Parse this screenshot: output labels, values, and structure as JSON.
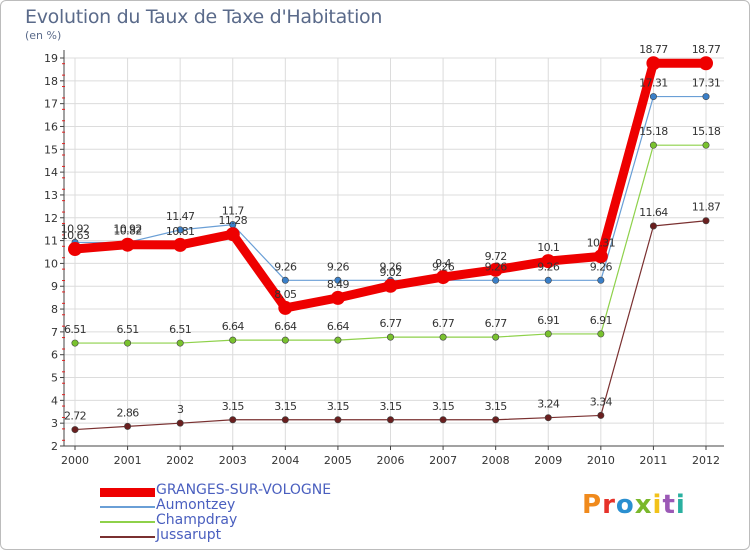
{
  "title": "Evolution du Taux de Taxe d'Habitation",
  "unit": "(en %)",
  "logo": {
    "text": "Proxiti",
    "colors": [
      "#f08a1c",
      "#e6322a",
      "#2a8fd0",
      "#7ab82c",
      "#f2c21a",
      "#9b59b6",
      "#2ab0a0"
    ]
  },
  "chart_data": {
    "type": "line",
    "title": "Evolution du Taux de Taxe d'Habitation",
    "ylabel": "(en %)",
    "ylim": [
      2,
      19
    ],
    "yticks": [
      "2",
      "3",
      "4",
      "5",
      "6",
      "7",
      "8",
      "9",
      "10",
      "11",
      "12",
      "13",
      "14",
      "15",
      "16",
      "17",
      "18",
      "19"
    ],
    "categories": [
      "2000",
      "2001",
      "2002",
      "2003",
      "2004",
      "2005",
      "2006",
      "2007",
      "2008",
      "2009",
      "2010",
      "2011",
      "2012"
    ],
    "series": [
      {
        "name": "GRANGES-SUR-VOLOGNE",
        "color": "#ee0000",
        "width": 9,
        "values": [
          10.63,
          10.82,
          10.81,
          11.28,
          8.05,
          8.49,
          9.02,
          9.4,
          9.72,
          10.1,
          10.31,
          18.77,
          18.77
        ],
        "labels": [
          "10.63",
          "10.82",
          "10.81",
          "11.28",
          "8.05",
          "8.49",
          "9.02",
          "9.4",
          "9.72",
          "10.1",
          "10.31",
          "18.77",
          "18.77"
        ]
      },
      {
        "name": "Aumontzey",
        "color": "#6a9fd6",
        "width": 1.2,
        "values": [
          10.92,
          10.92,
          11.47,
          11.7,
          9.26,
          9.26,
          9.26,
          9.26,
          9.26,
          9.26,
          9.26,
          17.31,
          17.31
        ],
        "labels": [
          "10.92",
          "10.92",
          "11.47",
          "11.7",
          "9.26",
          "9.26",
          "9.26",
          "9.26",
          "9.26",
          "9.26",
          "9.26",
          "17.31",
          "17.31"
        ]
      },
      {
        "name": "Champdray",
        "color": "#8ed14a",
        "width": 1.2,
        "values": [
          6.51,
          6.51,
          6.51,
          6.64,
          6.64,
          6.64,
          6.77,
          6.77,
          6.77,
          6.91,
          6.91,
          15.18,
          15.18
        ],
        "labels": [
          "6.51",
          "6.51",
          "6.51",
          "6.64",
          "6.64",
          "6.64",
          "6.77",
          "6.77",
          "6.77",
          "6.91",
          "6.91",
          "15.18",
          "15.18"
        ]
      },
      {
        "name": "Jussarupt",
        "color": "#7a3030",
        "width": 1.2,
        "values": [
          2.72,
          2.86,
          3.0,
          3.15,
          3.15,
          3.15,
          3.15,
          3.15,
          3.15,
          3.24,
          3.34,
          11.64,
          11.87
        ],
        "labels": [
          "2.72",
          "2.86",
          "3",
          "3.15",
          "3.15",
          "3.15",
          "3.15",
          "3.15",
          "3.15",
          "3.24",
          "3.34",
          "11.64",
          "11.87"
        ]
      }
    ]
  }
}
